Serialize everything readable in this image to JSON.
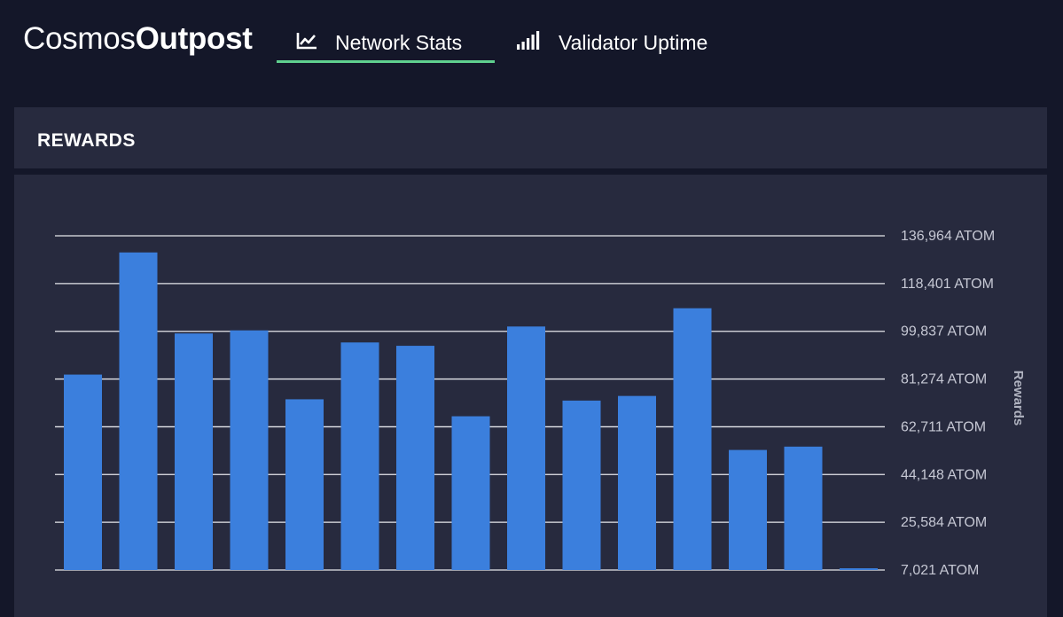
{
  "app": {
    "logo_light": "Cosmos",
    "logo_bold": "Outpost"
  },
  "nav": {
    "tabs": [
      {
        "label": "Network Stats",
        "icon": "line-chart-icon",
        "active": true
      },
      {
        "label": "Validator Uptime",
        "icon": "signal-bars-icon",
        "active": false
      }
    ],
    "active_color": "#5fd08e"
  },
  "panel": {
    "title": "REWARDS"
  },
  "colors": {
    "background": "#141729",
    "panel": "#272a3e",
    "bar": "#3b7fdd"
  },
  "chart_data": {
    "type": "bar",
    "title": "REWARDS",
    "ylabel": "Rewards",
    "xlabel": "",
    "y_axis_position": "right",
    "grid": true,
    "ylim": [
      7021,
      136964
    ],
    "ticks": [
      136964,
      118401,
      99837,
      81274,
      62711,
      44148,
      25584,
      7021
    ],
    "tick_labels": [
      "136,964 ATOM",
      "118,401 ATOM",
      "99,837 ATOM",
      "81,274 ATOM",
      "62,711 ATOM",
      "44,148 ATOM",
      "25,584 ATOM",
      "7,021 ATOM"
    ],
    "values": [
      83000,
      130500,
      99000,
      100200,
      73400,
      95500,
      94200,
      66800,
      101700,
      72900,
      74700,
      108800,
      53700,
      55000,
      7700
    ]
  }
}
